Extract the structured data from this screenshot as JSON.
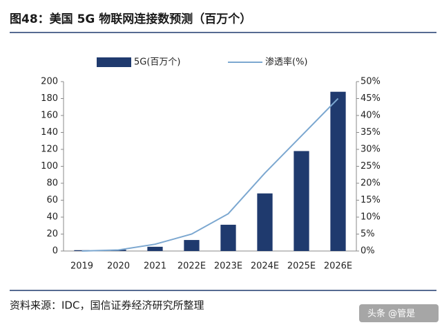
{
  "chart_data": {
    "type": "bar_line",
    "title": "图48：美国 5G 物联网连接数预测（百万个）",
    "source": "资料来源：IDC，国信证券经济研究所整理",
    "watermark": "头条 @管是",
    "categories": [
      "2019",
      "2020",
      "2021",
      "2022E",
      "2023E",
      "2024E",
      "2025E",
      "2026E"
    ],
    "series": [
      {
        "name": "5G(百万个)",
        "type": "bar",
        "color": "#1f3a6e",
        "values": [
          1,
          1.5,
          5,
          13,
          31,
          68,
          118,
          188
        ]
      },
      {
        "name": "渗透率(%)",
        "type": "line",
        "axis": "y2",
        "color": "#7ba7d0",
        "values": [
          0,
          0.3,
          2,
          5,
          11,
          23,
          34,
          45
        ]
      }
    ],
    "ylim": [
      0,
      200
    ],
    "yticks": [
      0,
      20,
      40,
      60,
      80,
      100,
      120,
      140,
      160,
      180,
      200
    ],
    "y2lim": [
      0,
      50
    ],
    "y2ticks": [
      {
        "value": 0,
        "label": "0%"
      },
      {
        "value": 5,
        "label": "5%"
      },
      {
        "value": 10,
        "label": "10%"
      },
      {
        "value": 15,
        "label": "15%"
      },
      {
        "value": 20,
        "label": "20%"
      },
      {
        "value": 25,
        "label": "25%"
      },
      {
        "value": 30,
        "label": "30%"
      },
      {
        "value": 35,
        "label": "35%"
      },
      {
        "value": 40,
        "label": "40%"
      },
      {
        "value": 45,
        "label": "45%"
      },
      {
        "value": 50,
        "label": "50%"
      }
    ],
    "grid": false,
    "legend": "top"
  }
}
